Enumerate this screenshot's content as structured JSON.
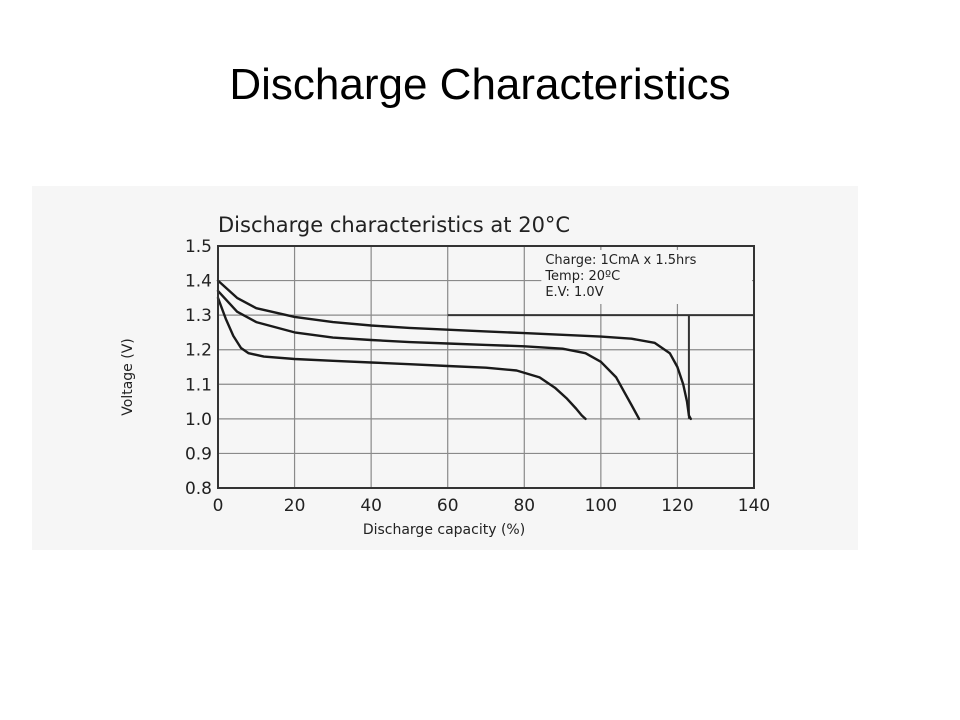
{
  "slide": {
    "title": "Discharge Characteristics"
  },
  "chart_data": {
    "type": "line",
    "title": "Discharge characteristics at 20°C",
    "xlabel": "Discharge capacity (%)",
    "ylabel": "Voltage (V)",
    "xlim": [
      0,
      140
    ],
    "ylim": [
      0.8,
      1.5
    ],
    "xticks": [
      0,
      20,
      40,
      60,
      80,
      100,
      120,
      140
    ],
    "yticks": [
      0.8,
      0.9,
      1.0,
      1.1,
      1.2,
      1.3,
      1.4,
      1.5
    ],
    "ytick_labels": [
      "0.8",
      "0.9",
      "1.0",
      "1.1",
      "1.2",
      "1.3",
      "1.4",
      "1.5"
    ],
    "grid": true,
    "annotations": [
      "Charge: 1CmA x 1.5hrs",
      "Temp: 20ºC",
      "E.V: 1.0V"
    ],
    "reference_lines": [
      {
        "x": [
          60,
          140
        ],
        "y": [
          1.3,
          1.3
        ]
      },
      {
        "x": [
          123,
          123
        ],
        "y": [
          1.0,
          1.3
        ]
      }
    ],
    "series": [
      {
        "color": "#1a1a1a",
        "x": [
          0,
          5,
          10,
          20,
          30,
          40,
          50,
          60,
          70,
          80,
          90,
          100,
          108,
          114,
          118,
          120,
          121.5,
          122.5,
          123,
          123.5
        ],
        "y": [
          1.4,
          1.35,
          1.32,
          1.295,
          1.28,
          1.27,
          1.263,
          1.258,
          1.253,
          1.248,
          1.243,
          1.238,
          1.232,
          1.22,
          1.19,
          1.15,
          1.1,
          1.05,
          1.01,
          1.0
        ]
      },
      {
        "color": "#1a1a1a",
        "x": [
          0,
          5,
          10,
          20,
          30,
          40,
          50,
          60,
          70,
          80,
          90,
          96,
          100,
          104,
          106,
          108,
          109.5,
          110
        ],
        "y": [
          1.37,
          1.31,
          1.28,
          1.25,
          1.235,
          1.228,
          1.222,
          1.218,
          1.214,
          1.21,
          1.203,
          1.19,
          1.165,
          1.12,
          1.08,
          1.04,
          1.01,
          1.0
        ]
      },
      {
        "color": "#1a1a1a",
        "x": [
          0,
          2,
          4,
          6,
          8,
          12,
          20,
          30,
          40,
          50,
          60,
          70,
          78,
          84,
          88,
          91,
          93.5,
          95,
          96
        ],
        "y": [
          1.35,
          1.29,
          1.24,
          1.205,
          1.19,
          1.18,
          1.173,
          1.168,
          1.163,
          1.158,
          1.153,
          1.148,
          1.14,
          1.12,
          1.09,
          1.06,
          1.03,
          1.01,
          1.0
        ]
      }
    ]
  }
}
